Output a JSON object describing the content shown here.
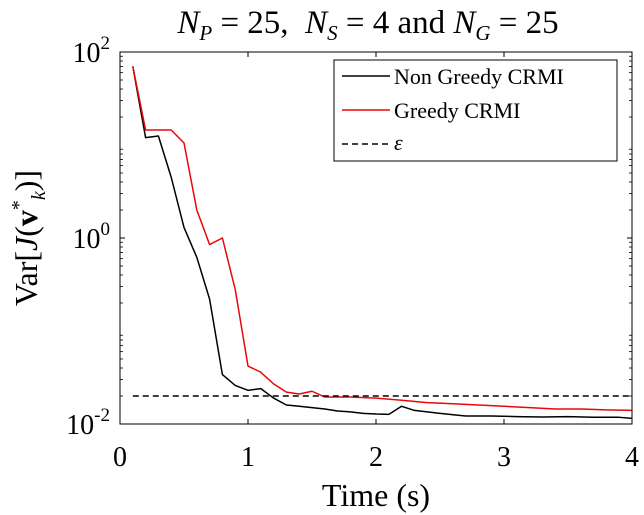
{
  "chart_data": {
    "type": "line",
    "title": "N_P = 25, N_S = 4 and N_G = 25",
    "title_parts": {
      "p1_var": "N",
      "p1_sub": "P",
      "p1_eq": " = 25,  ",
      "p2_var": "N",
      "p2_sub": "S",
      "p2_eq": " = 4 and ",
      "p3_var": "N",
      "p3_sub": "G",
      "p3_eq": " = 25"
    },
    "xlabel": "Time (s)",
    "ylabel": "Var[Ĵ(v*_k)]",
    "ylabel_parts": {
      "prefix": "Var[",
      "J": "J",
      "open": "(",
      "v": "v",
      "star": "*",
      "k": "k",
      "close": ")]"
    },
    "xlim": [
      0,
      4
    ],
    "ylim": [
      0.01,
      100
    ],
    "yscale": "log",
    "x_ticks": [
      {
        "value": 0,
        "label": "0"
      },
      {
        "value": 1,
        "label": "1"
      },
      {
        "value": 2,
        "label": "2"
      },
      {
        "value": 3,
        "label": "3"
      },
      {
        "value": 4,
        "label": "4"
      }
    ],
    "y_ticks": [
      {
        "value": 0.01,
        "base": "10",
        "exp": "-2"
      },
      {
        "value": 1,
        "base": "10",
        "exp": "0"
      },
      {
        "value": 100,
        "base": "10",
        "exp": "2"
      }
    ],
    "grid": false,
    "legend_position": "top-right",
    "series": [
      {
        "name": "Non Greedy CRMI",
        "color": "#000000",
        "dash": "solid",
        "x": [
          0.1,
          0.2,
          0.3,
          0.4,
          0.5,
          0.6,
          0.7,
          0.8,
          0.9,
          1.0,
          1.1,
          1.2,
          1.3,
          1.4,
          1.5,
          1.6,
          1.7,
          1.8,
          1.9,
          2.0,
          2.1,
          2.2,
          2.3,
          2.5,
          2.7,
          2.9,
          3.1,
          3.3,
          3.5,
          3.7,
          3.9,
          4.0
        ],
        "y": [
          70,
          12,
          12.5,
          4.5,
          1.3,
          0.62,
          0.22,
          0.034,
          0.026,
          0.023,
          0.024,
          0.019,
          0.016,
          0.0155,
          0.015,
          0.0145,
          0.0138,
          0.0135,
          0.013,
          0.0128,
          0.0127,
          0.0155,
          0.014,
          0.013,
          0.0122,
          0.0122,
          0.012,
          0.0119,
          0.012,
          0.0118,
          0.0118,
          0.0115
        ]
      },
      {
        "name": "Greedy CRMI",
        "color": "#e8080a",
        "dash": "solid",
        "x": [
          0.1,
          0.2,
          0.3,
          0.4,
          0.5,
          0.6,
          0.7,
          0.8,
          0.9,
          1.0,
          1.1,
          1.2,
          1.3,
          1.4,
          1.5,
          1.6,
          1.7,
          1.8,
          2.0,
          2.2,
          2.4,
          2.6,
          2.8,
          3.0,
          3.2,
          3.4,
          3.6,
          3.8,
          4.0
        ],
        "y": [
          70,
          14.5,
          14.5,
          14.5,
          10.5,
          2.0,
          0.85,
          1.0,
          0.28,
          0.042,
          0.036,
          0.027,
          0.022,
          0.021,
          0.0225,
          0.0195,
          0.0195,
          0.0195,
          0.019,
          0.018,
          0.017,
          0.0165,
          0.016,
          0.0155,
          0.015,
          0.0145,
          0.0145,
          0.0142,
          0.014
        ]
      },
      {
        "name": "ε",
        "color": "#000000",
        "dash": "dashed",
        "x": [
          0.1,
          4.0
        ],
        "y": [
          0.02,
          0.02
        ]
      }
    ]
  }
}
